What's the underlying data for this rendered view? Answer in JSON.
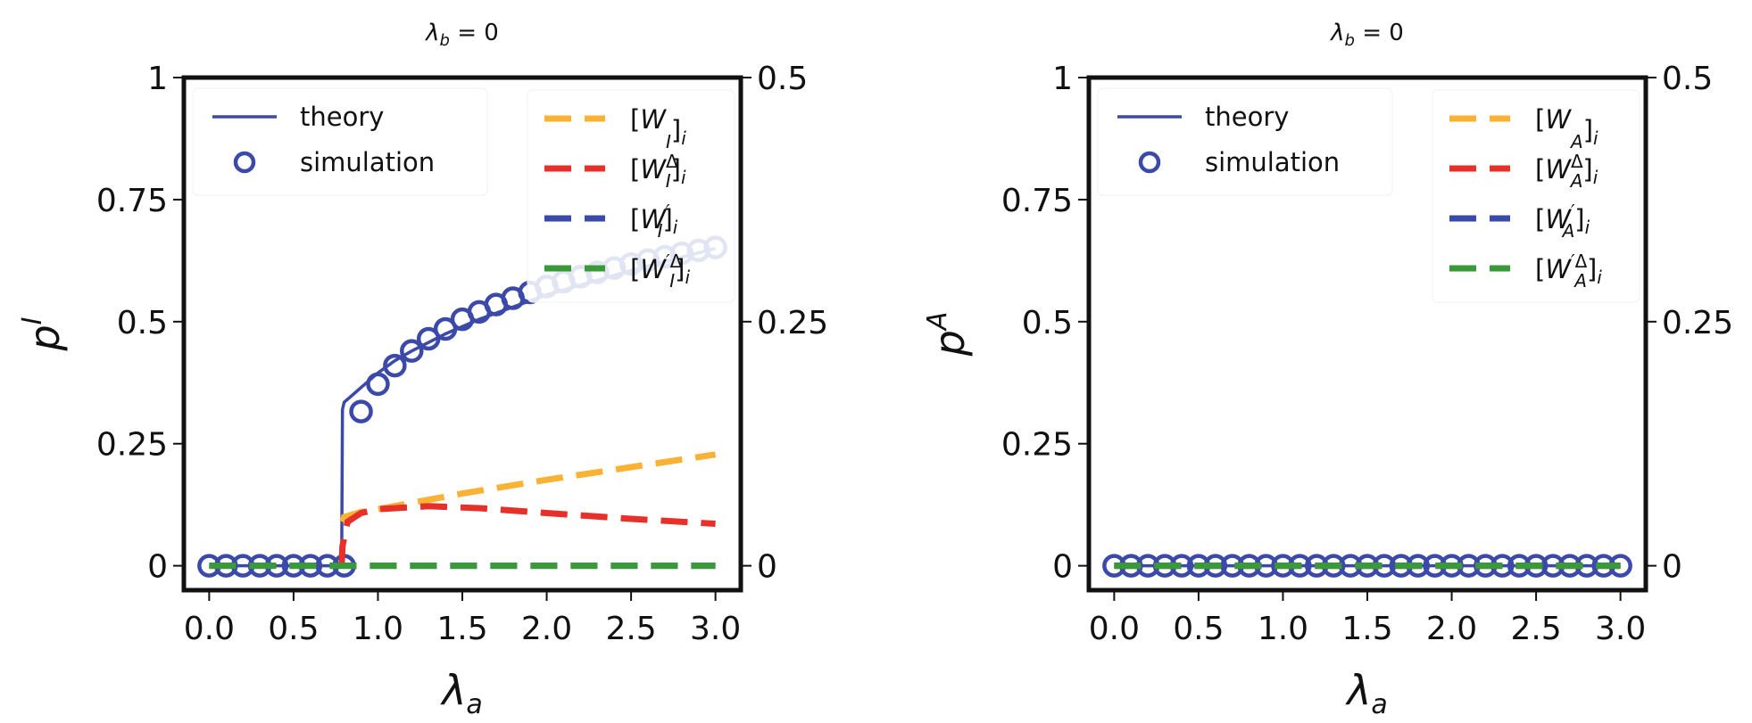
{
  "colors": {
    "theory": "#3b4aa8",
    "simulation": "#3b4aa8",
    "W": "#f9b233",
    "W_delta": "#e8302a",
    "W_prime": "#3b4aa8",
    "W_prime_delta": "#3a9a3a"
  },
  "chart_data": [
    {
      "type": "line",
      "title": {
        "symbol": "λ",
        "sub": "b",
        "rest": " = 0"
      },
      "xlabel": {
        "symbol": "λ",
        "sub": "a"
      },
      "ylabel": {
        "symbol": "p",
        "sup": "I"
      },
      "xlim": [
        -0.15,
        3.15
      ],
      "ylim": [
        -0.05,
        1
      ],
      "right_ylim": [
        -0.025,
        0.5
      ],
      "x_ticks": [
        "0.0",
        "0.5",
        "1.0",
        "1.5",
        "2.0",
        "2.5",
        "3.0"
      ],
      "x_tick_values": [
        0,
        0.5,
        1,
        1.5,
        2,
        2.5,
        3
      ],
      "y_ticks": [
        "0",
        "0.25",
        "0.5",
        "0.75",
        "1"
      ],
      "y_tick_values": [
        0,
        0.25,
        0.5,
        0.75,
        1
      ],
      "right_y_ticks": [
        "0",
        "0.25",
        "0.5"
      ],
      "right_y_tick_values": [
        0,
        0.25,
        0.5
      ],
      "grid": false,
      "legend_left": {
        "placement": "top-left",
        "entries": [
          {
            "label": "theory",
            "kind": "line",
            "color_key": "theory"
          },
          {
            "label": "simulation",
            "kind": "marker",
            "color_key": "simulation"
          }
        ]
      },
      "legend_right": {
        "placement": "top-right",
        "entries": [
          {
            "open": "[",
            "main": "W",
            "prime": "",
            "sup": "",
            "sub": "I",
            "close": "]",
            "outer_sub": "i",
            "color_key": "W"
          },
          {
            "open": "[",
            "main": "W",
            "prime": "",
            "sup": "Δ",
            "sub": "I",
            "close": "]",
            "outer_sub": "i",
            "color_key": "W_delta"
          },
          {
            "open": "[",
            "main": "W",
            "prime": "′",
            "sup": "",
            "sub": "I",
            "close": "]",
            "outer_sub": "i",
            "color_key": "W_prime"
          },
          {
            "open": "[",
            "main": "W",
            "prime": "′",
            "sup": "Δ",
            "sub": "I",
            "close": "]",
            "outer_sub": "i",
            "color_key": "W_prime_delta"
          }
        ]
      },
      "series": [
        {
          "name": "theory",
          "axis": "left",
          "style": "solid",
          "color_key": "theory",
          "x": [
            0,
            0.785,
            0.79,
            0.8,
            0.85,
            0.9,
            1.0,
            1.1,
            1.2,
            1.4,
            1.6,
            1.8,
            2.0,
            2.5,
            3.0
          ],
          "y": [
            0,
            0,
            0.32,
            0.335,
            0.35,
            0.365,
            0.395,
            0.42,
            0.44,
            0.475,
            0.505,
            0.53,
            0.555,
            0.605,
            0.65
          ]
        },
        {
          "name": "simulation",
          "axis": "left",
          "style": "marker",
          "color_key": "simulation",
          "x": [
            0,
            0.1,
            0.2,
            0.3,
            0.4,
            0.5,
            0.6,
            0.7,
            0.8,
            0.9,
            1.0,
            1.1,
            1.2,
            1.3,
            1.4,
            1.5,
            1.6,
            1.7,
            1.8,
            1.9,
            2.0,
            2.1,
            2.2,
            2.3,
            2.4,
            2.5,
            2.6,
            2.7,
            2.8,
            2.9,
            3.0
          ],
          "y": [
            0,
            0,
            0,
            0,
            0,
            0,
            0,
            0,
            0,
            0.316,
            0.372,
            0.41,
            0.44,
            0.465,
            0.485,
            0.505,
            0.52,
            0.535,
            0.548,
            0.56,
            0.572,
            0.582,
            0.592,
            0.601,
            0.61,
            0.618,
            0.626,
            0.633,
            0.64,
            0.646,
            0.652
          ]
        },
        {
          "name": "[W_I]_i",
          "axis": "right",
          "style": "dashed",
          "color_key": "W",
          "x": [
            0.79,
            0.8,
            0.9,
            1.0,
            1.5,
            2.0,
            2.5,
            3.0
          ],
          "y": [
            0.045,
            0.05,
            0.055,
            0.058,
            0.074,
            0.088,
            0.101,
            0.114
          ]
        },
        {
          "name": "[W_I^Δ]_i",
          "axis": "right",
          "style": "dashed",
          "color_key": "W_delta",
          "x": [
            0.785,
            0.79,
            0.82,
            0.9,
            1.0,
            1.3,
            1.6,
            2.0,
            2.5,
            3.0
          ],
          "y": [
            0,
            0.02,
            0.045,
            0.054,
            0.058,
            0.061,
            0.059,
            0.054,
            0.048,
            0.043
          ]
        },
        {
          "name": "[W'_I]_i",
          "axis": "right",
          "style": "dashed",
          "color_key": "W_prime",
          "x": [
            0,
            3.0
          ],
          "y": [
            0,
            0
          ]
        },
        {
          "name": "[W'_I^Δ]_i",
          "axis": "right",
          "style": "dashed",
          "color_key": "W_prime_delta",
          "x": [
            0,
            3.0
          ],
          "y": [
            0,
            0
          ]
        }
      ]
    },
    {
      "type": "line",
      "title": {
        "symbol": "λ",
        "sub": "b",
        "rest": " = 0"
      },
      "xlabel": {
        "symbol": "λ",
        "sub": "a"
      },
      "ylabel": {
        "symbol": "p",
        "sup": "A"
      },
      "xlim": [
        -0.15,
        3.15
      ],
      "ylim": [
        -0.05,
        1
      ],
      "right_ylim": [
        -0.025,
        0.5
      ],
      "x_ticks": [
        "0.0",
        "0.5",
        "1.0",
        "1.5",
        "2.0",
        "2.5",
        "3.0"
      ],
      "x_tick_values": [
        0,
        0.5,
        1,
        1.5,
        2,
        2.5,
        3
      ],
      "y_ticks": [
        "0",
        "0.25",
        "0.5",
        "0.75",
        "1"
      ],
      "y_tick_values": [
        0,
        0.25,
        0.5,
        0.75,
        1
      ],
      "right_y_ticks": [
        "0",
        "0.25",
        "0.5"
      ],
      "right_y_tick_values": [
        0,
        0.25,
        0.5
      ],
      "grid": false,
      "legend_left": {
        "placement": "top-left",
        "entries": [
          {
            "label": "theory",
            "kind": "line",
            "color_key": "theory"
          },
          {
            "label": "simulation",
            "kind": "marker",
            "color_key": "simulation"
          }
        ]
      },
      "legend_right": {
        "placement": "top-right",
        "entries": [
          {
            "open": "[",
            "main": "W",
            "prime": "",
            "sup": "",
            "sub": "A",
            "close": "]",
            "outer_sub": "i",
            "color_key": "W"
          },
          {
            "open": "[",
            "main": "W",
            "prime": "",
            "sup": "Δ",
            "sub": "A",
            "close": "]",
            "outer_sub": "i",
            "color_key": "W_delta"
          },
          {
            "open": "[",
            "main": "W",
            "prime": "′",
            "sup": "",
            "sub": "A",
            "close": "]",
            "outer_sub": "i",
            "color_key": "W_prime"
          },
          {
            "open": "[",
            "main": "W",
            "prime": "′",
            "sup": "Δ",
            "sub": "A",
            "close": "]",
            "outer_sub": "i",
            "color_key": "W_prime_delta"
          }
        ]
      },
      "series": [
        {
          "name": "theory",
          "axis": "left",
          "style": "solid",
          "color_key": "theory",
          "x": [
            0,
            3.0
          ],
          "y": [
            0,
            0
          ]
        },
        {
          "name": "simulation",
          "axis": "left",
          "style": "marker",
          "color_key": "simulation",
          "x": [
            0,
            0.1,
            0.2,
            0.3,
            0.4,
            0.5,
            0.6,
            0.7,
            0.8,
            0.9,
            1.0,
            1.1,
            1.2,
            1.3,
            1.4,
            1.5,
            1.6,
            1.7,
            1.8,
            1.9,
            2.0,
            2.1,
            2.2,
            2.3,
            2.4,
            2.5,
            2.6,
            2.7,
            2.8,
            2.9,
            3.0
          ],
          "y": [
            0,
            0,
            0,
            0,
            0,
            0,
            0,
            0,
            0,
            0,
            0,
            0,
            0,
            0,
            0,
            0,
            0,
            0,
            0,
            0,
            0,
            0,
            0,
            0,
            0,
            0,
            0,
            0,
            0,
            0,
            0
          ]
        },
        {
          "name": "[W_A]_i",
          "axis": "right",
          "style": "dashed",
          "color_key": "W",
          "x": [
            0,
            3.0
          ],
          "y": [
            0,
            0
          ]
        },
        {
          "name": "[W_A^Δ]_i",
          "axis": "right",
          "style": "dashed",
          "color_key": "W_delta",
          "x": [
            0,
            3.0
          ],
          "y": [
            0,
            0
          ]
        },
        {
          "name": "[W'_A]_i",
          "axis": "right",
          "style": "dashed",
          "color_key": "W_prime",
          "x": [
            0,
            3.0
          ],
          "y": [
            0,
            0
          ]
        },
        {
          "name": "[W'_A^Δ]_i",
          "axis": "right",
          "style": "dashed",
          "color_key": "W_prime_delta",
          "x": [
            0,
            3.0
          ],
          "y": [
            0,
            0
          ]
        }
      ]
    }
  ]
}
